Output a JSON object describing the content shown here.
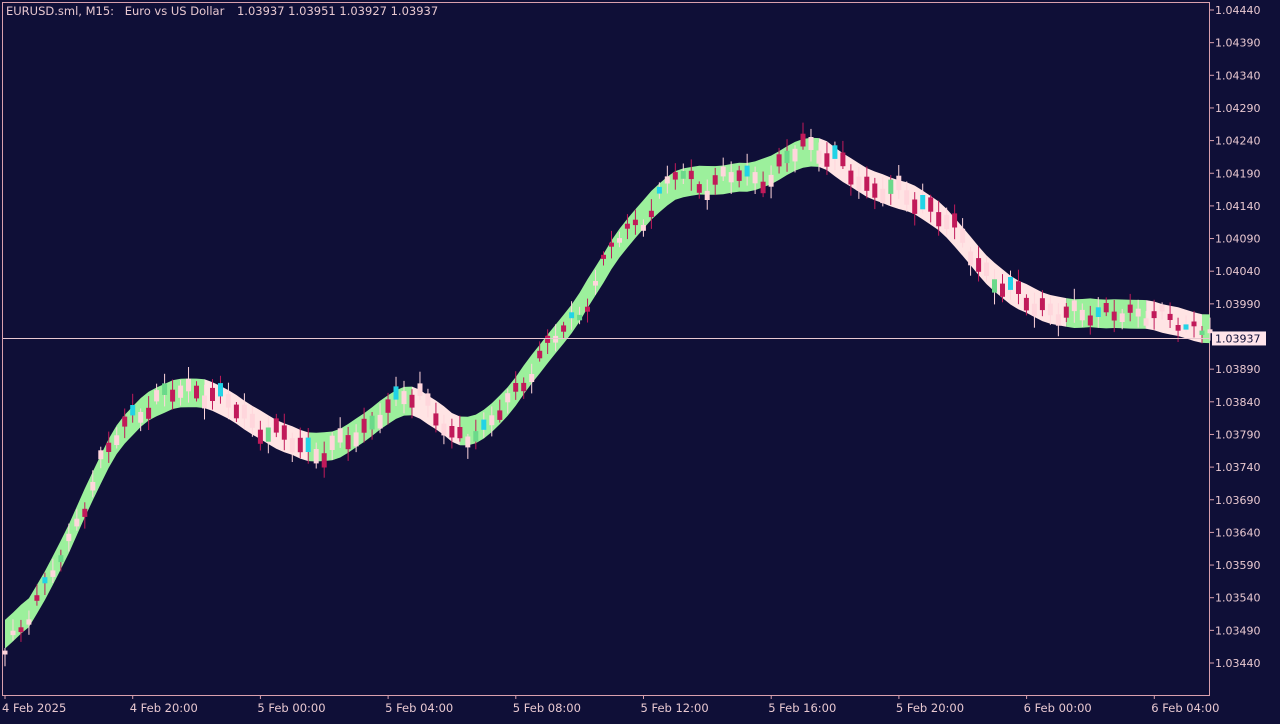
{
  "header": {
    "symbol": "EURUSD.sml, M15:",
    "description": "Euro vs US Dollar",
    "ohlc": "1.03937 1.03951 1.03927 1.03937"
  },
  "colors": {
    "background": "#0f0f37",
    "frame": "#d9a0ad",
    "text": "#e8c8d0",
    "bull_body": "#ffd6dc",
    "bear_body": "#c11a5a",
    "bull_band": "#9cf09c",
    "bear_band": "#ffe4e4",
    "bull_bar": "#22d3e6",
    "bull_bar_alt": "#6bd98a",
    "bear_bar_dark": "#0e4a2a",
    "price_line": "#e8c8d0"
  },
  "chart_data": {
    "type": "candlestick",
    "symbol": "EURUSD.sml",
    "timeframe": "M15",
    "ylim": [
      1.034,
      1.0445
    ],
    "y_ticks": [
      "1.04440",
      "1.04390",
      "1.04340",
      "1.04290",
      "1.04240",
      "1.04190",
      "1.04140",
      "1.04090",
      "1.04040",
      "1.03990",
      "1.03890",
      "1.03840",
      "1.03790",
      "1.03740",
      "1.03690",
      "1.03640",
      "1.03590",
      "1.03540",
      "1.03490",
      "1.03440"
    ],
    "x_ticks": [
      "4 Feb 2025",
      "4 Feb 20:00",
      "5 Feb 00:00",
      "5 Feb 04:00",
      "5 Feb 08:00",
      "5 Feb 12:00",
      "5 Feb 16:00",
      "5 Feb 20:00",
      "6 Feb 00:00",
      "6 Feb 04:00"
    ],
    "current_price": "1.03937",
    "anchors": [
      [
        0,
        1.0345,
        1.035
      ],
      [
        4,
        1.0354,
        1.0358
      ],
      [
        8,
        1.0362,
        1.037
      ],
      [
        12,
        1.0375,
        1.038
      ],
      [
        16,
        1.0382,
        1.0385
      ],
      [
        20,
        1.0385,
        1.0387
      ],
      [
        24,
        1.0386,
        1.0387
      ],
      [
        28,
        1.0384,
        1.0385
      ],
      [
        32,
        1.038,
        1.0383
      ],
      [
        36,
        1.0378,
        1.0381
      ],
      [
        40,
        1.0376,
        1.0379
      ],
      [
        44,
        1.0379,
        1.0381
      ],
      [
        48,
        1.0383,
        1.0386
      ],
      [
        52,
        1.0386,
        1.0388
      ],
      [
        56,
        1.0378,
        1.0383
      ],
      [
        60,
        1.038,
        1.0378
      ],
      [
        64,
        1.0385,
        1.039
      ],
      [
        68,
        1.0393,
        1.0387
      ],
      [
        72,
        1.0397,
        1.0402
      ],
      [
        76,
        1.0408,
        1.04
      ],
      [
        80,
        1.0412,
        1.0416
      ],
      [
        84,
        1.0419,
        1.0413
      ],
      [
        88,
        1.0417,
        1.0413
      ],
      [
        92,
        1.0419,
        1.0422
      ],
      [
        96,
        1.0418,
        1.0422
      ],
      [
        100,
        1.0424,
        1.0421
      ],
      [
        104,
        1.0421,
        1.0416
      ],
      [
        108,
        1.0417,
        1.0416
      ],
      [
        112,
        1.0416,
        1.0417
      ],
      [
        116,
        1.0414,
        1.0413
      ],
      [
        120,
        1.0409,
        1.0404
      ],
      [
        124,
        1.0402,
        1.04
      ],
      [
        128,
        1.04,
        1.0396
      ],
      [
        132,
        1.0397,
        1.0398
      ],
      [
        136,
        1.0398,
        1.0396
      ],
      [
        140,
        1.0397,
        1.0399
      ],
      [
        144,
        1.0398,
        1.0396
      ],
      [
        148,
        1.0395,
        1.0396
      ],
      [
        151,
        1.0396,
        1.0394
      ]
    ]
  }
}
